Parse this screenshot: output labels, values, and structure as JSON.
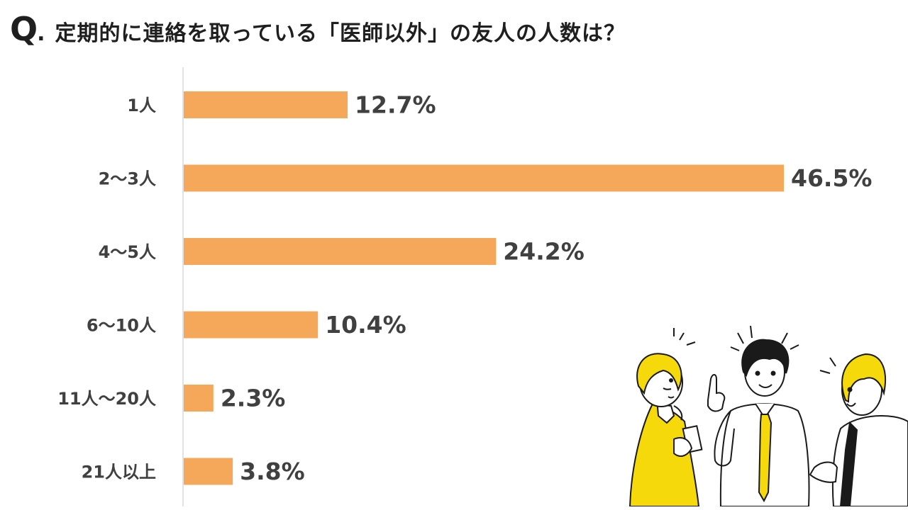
{
  "question": {
    "prefix": "Q",
    "dot": ".",
    "text": "定期的に連絡を取っている「医師以外」の友人の人数は？"
  },
  "chart_data": {
    "type": "bar",
    "orientation": "horizontal",
    "categories": [
      "1人",
      "2〜3人",
      "4〜5人",
      "6〜10人",
      "11人〜20人",
      "21人以上"
    ],
    "values": [
      12.7,
      46.5,
      24.2,
      10.4,
      2.3,
      3.8
    ],
    "value_labels": [
      "12.7%",
      "46.5%",
      "24.2%",
      "10.4%",
      "2.3%",
      "3.8%"
    ],
    "title": "定期的に連絡を取っている「医師以外」の友人の人数は？",
    "xlabel": "",
    "ylabel": "",
    "xlim": [
      0,
      46.5
    ],
    "grid": false,
    "legend": "none",
    "bar_color": "#F5A85A",
    "label_color": "#404040"
  },
  "illustration": {
    "subject": "three people talking",
    "colors": {
      "yellow": "#F5D90A",
      "outline": "#1a1a1a"
    }
  }
}
